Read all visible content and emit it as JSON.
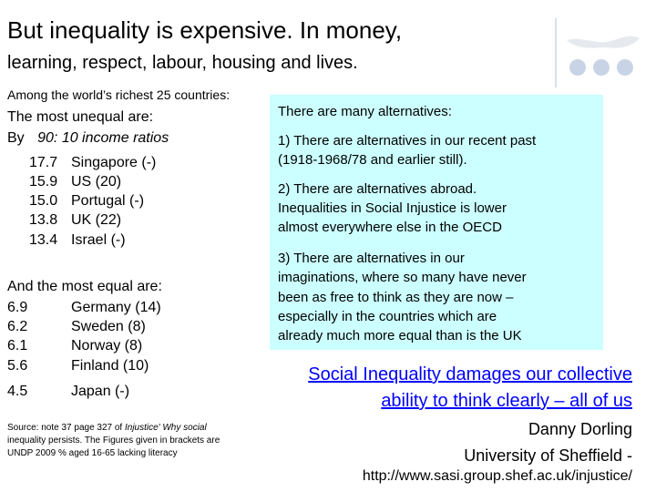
{
  "title": {
    "line1": "But inequality is expensive. In money,",
    "line2": "learning, respect, labour, housing and lives."
  },
  "left": {
    "subtitle": "Among the world’s richest 25 countries:",
    "unequal_heading": "The most unequal are:",
    "by_label": "By",
    "by_ratio": "90: 10 income ratios",
    "most_unequal": [
      {
        "value": "17.7",
        "country": "Singapore (-)"
      },
      {
        "value": "15.9",
        "country": "US (20)"
      },
      {
        "value": "15.0",
        "country": "Portugal (-)"
      },
      {
        "value": "13.8",
        "country": "UK (22)"
      },
      {
        "value": "13.4",
        "country": "Israel (-)"
      }
    ],
    "equal_heading": "And the most equal are:",
    "most_equal": [
      {
        "value": "6.9",
        "country": "Germany (14)"
      },
      {
        "value": "6.2",
        "country": "Sweden (8)"
      },
      {
        "value": "6.1",
        "country": "Norway (8)"
      },
      {
        "value": "5.6",
        "country": "Finland (10)"
      },
      {
        "value": "4.5",
        "country": "Japan (-)"
      }
    ]
  },
  "alternatives": {
    "heading": "There are many alternatives:",
    "p1": [
      "1) There are alternatives in our recent past",
      "(1918-1968/78 and earlier still)."
    ],
    "p2": [
      "2) There are alternatives abroad.",
      "Inequalities in Social Injustice is lower",
      "almost everywhere else in the OECD"
    ],
    "p3": [
      "3) There are alternatives in our",
      "imaginations, where so many have never",
      "been as free to think as they are now –",
      "especially in the countries which are",
      "already much more equal than is the UK"
    ],
    "box_color": "#ccffff"
  },
  "quote": {
    "line1": "Social Inequality damages our collective",
    "line2": "ability to think clearly – all of us",
    "color": "#0000ff"
  },
  "source": {
    "line1_a": "Source: note 37 page 327 of ",
    "line1_b": "Injustice' Why social",
    "line2": "inequality persists. The Figures given in brackets are",
    "line3": "UNDP 2009 % aged 16-65 lacking literacy"
  },
  "author": {
    "name": "Danny Dorling",
    "affiliation": "University of Sheffield  -",
    "url": "http://www.sasi.group.shef.ac.uk/injustice/"
  }
}
